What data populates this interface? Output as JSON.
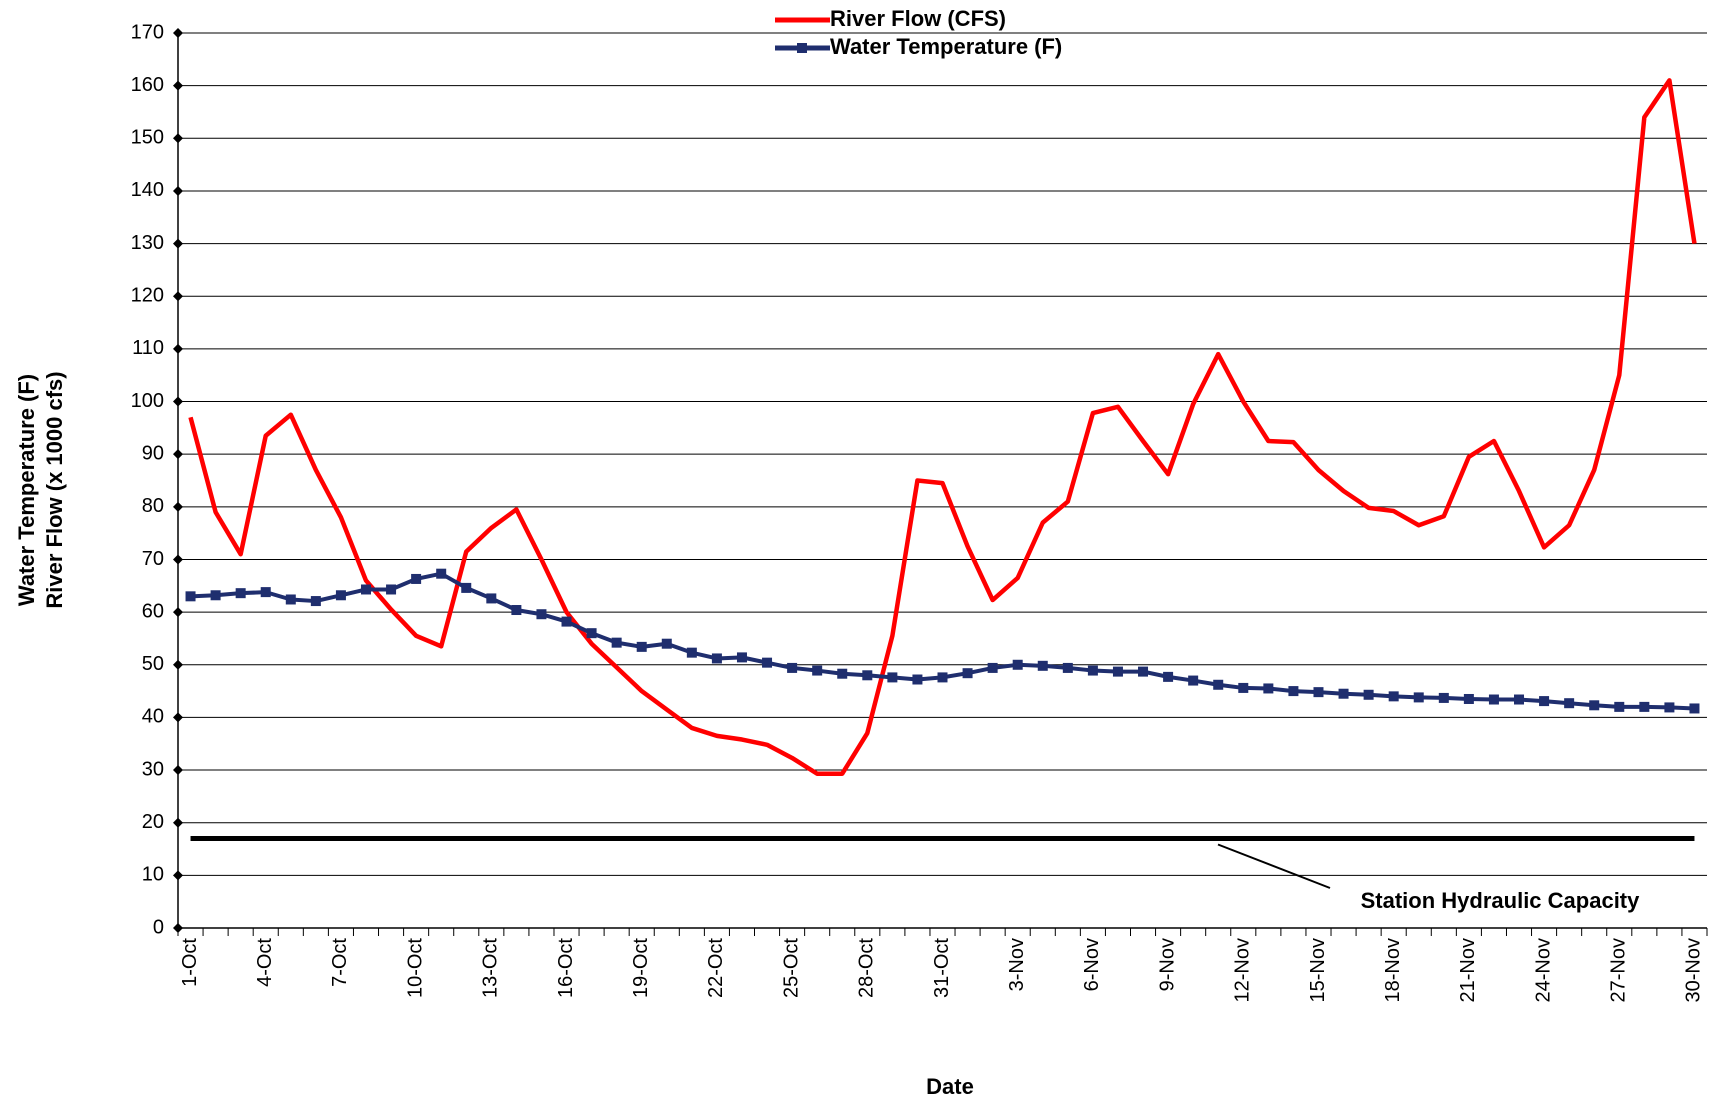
{
  "chart_data": {
    "type": "line",
    "xlabel": "Date",
    "ylabel": [
      "Water Temperature (F)",
      "River Flow (x 1000 cfs)"
    ],
    "categories": [
      "1-Oct",
      null,
      null,
      "4-Oct",
      null,
      null,
      "7-Oct",
      null,
      null,
      "10-Oct",
      null,
      null,
      "13-Oct",
      null,
      null,
      "16-Oct",
      null,
      null,
      "19-Oct",
      null,
      null,
      "22-Oct",
      null,
      null,
      "25-Oct",
      null,
      null,
      "28-Oct",
      null,
      null,
      "31-Oct",
      null,
      null,
      "3-Nov",
      null,
      null,
      "6-Nov",
      null,
      null,
      "9-Nov",
      null,
      null,
      "12-Nov",
      null,
      null,
      "15-Nov",
      null,
      null,
      "18-Nov",
      null,
      null,
      "21-Nov",
      null,
      null,
      "24-Nov",
      null,
      null,
      "27-Nov",
      null,
      null,
      "30-Nov"
    ],
    "series": [
      {
        "name": "River Flow (CFS)",
        "color": "#ff0000",
        "marker": false,
        "values": [
          97,
          79,
          71,
          93.5,
          97.5,
          87,
          78,
          66,
          60.5,
          55.5,
          53.5,
          71.5,
          76,
          79.5,
          70,
          60,
          54,
          49.5,
          45,
          41.5,
          38,
          36.5,
          35.8,
          34.8,
          32.3,
          29.3,
          29.3,
          37,
          55.5,
          85,
          84.5,
          72.5,
          62.3,
          66.5,
          77,
          81,
          97.8,
          99,
          92.5,
          86.2,
          99.5,
          109,
          100,
          92.5,
          92.3,
          87,
          83,
          79.8,
          79.2,
          76.5,
          78.2,
          89.5,
          92.5,
          83,
          72.3,
          76.5,
          87,
          105,
          154,
          161,
          130
        ]
      },
      {
        "name": "Water Temperature (F)",
        "color": "#1f2e6e",
        "marker": true,
        "values": [
          63,
          63.2,
          63.6,
          63.8,
          62.4,
          62.1,
          63.2,
          64.3,
          64.3,
          66.3,
          67.3,
          64.6,
          62.6,
          60.4,
          59.6,
          58.2,
          56,
          54.2,
          53.4,
          54,
          52.3,
          51.2,
          51.4,
          50.4,
          49.4,
          48.9,
          48.3,
          48,
          47.6,
          47.2,
          47.6,
          48.4,
          49.4,
          50,
          49.8,
          49.4,
          48.9,
          48.7,
          48.7,
          47.7,
          47,
          46.2,
          45.6,
          45.5,
          45,
          44.8,
          44.5,
          44.3,
          44,
          43.8,
          43.7,
          43.5,
          43.4,
          43.4,
          43.1,
          42.7,
          42.3,
          42,
          42,
          41.9,
          41.7
        ]
      }
    ],
    "capacity": {
      "value": 17,
      "label": "Station Hydraulic Capacity"
    },
    "ylim": [
      0,
      170
    ],
    "yticks": [
      0,
      10,
      20,
      30,
      40,
      50,
      60,
      70,
      80,
      90,
      100,
      110,
      120,
      130,
      140,
      150,
      160,
      170
    ],
    "grid": true
  }
}
